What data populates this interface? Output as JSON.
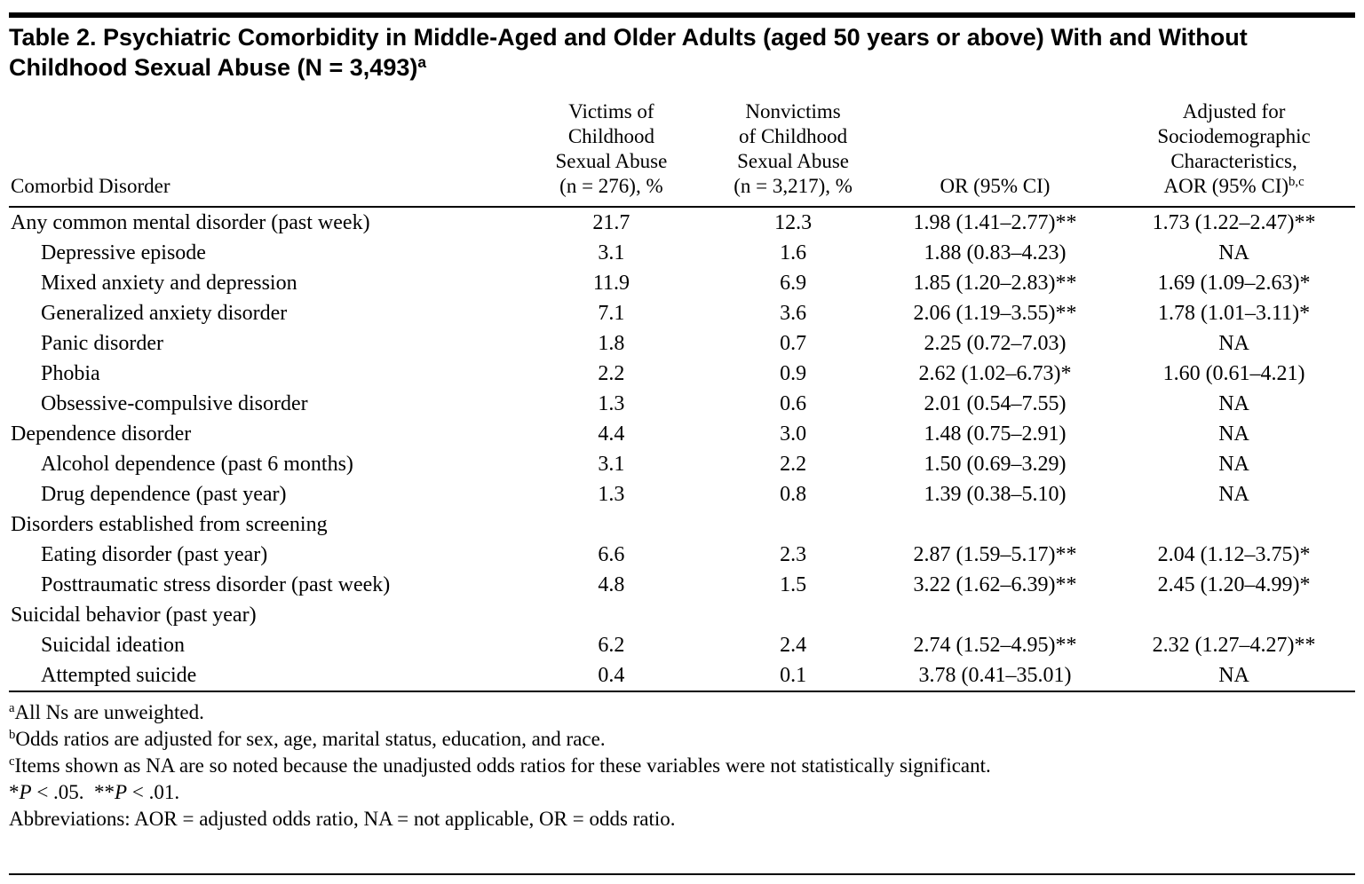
{
  "title": {
    "text": "Table 2. Psychiatric Comorbidity in Middle-Aged and Older Adults (aged 50 years or above) With and Without Childhood Sexual Abuse (N = 3,493)",
    "superscript": "a"
  },
  "table": {
    "header": {
      "col_disorder": "Comorbid Disorder",
      "col_victims": "Victims of\nChildhood\nSexual Abuse\n(n = 276), %",
      "col_nonvictims": "Nonvictims\nof Childhood\nSexual Abuse\n(n = 3,217), %",
      "col_or": "OR (95% CI)",
      "col_aor": "Adjusted for\nSociodemographic\nCharacteristics,\nAOR (95% CI)",
      "col_aor_superscript": "b,c"
    },
    "rows": [
      {
        "label": "Any common mental disorder (past week)",
        "indent": false,
        "victims": "21.7",
        "nonvictims": "12.3",
        "or": "1.98 (1.41–2.77)**",
        "aor": "1.73 (1.22–2.47)**"
      },
      {
        "label": "Depressive episode",
        "indent": true,
        "victims": "3.1",
        "nonvictims": "1.6",
        "or": "1.88 (0.83–4.23)",
        "aor": "NA"
      },
      {
        "label": "Mixed anxiety and depression",
        "indent": true,
        "victims": "11.9",
        "nonvictims": "6.9",
        "or": "1.85 (1.20–2.83)**",
        "aor": "1.69 (1.09–2.63)*"
      },
      {
        "label": "Generalized anxiety disorder",
        "indent": true,
        "victims": "7.1",
        "nonvictims": "3.6",
        "or": "2.06 (1.19–3.55)**",
        "aor": "1.78 (1.01–3.11)*"
      },
      {
        "label": "Panic disorder",
        "indent": true,
        "victims": "1.8",
        "nonvictims": "0.7",
        "or": "2.25 (0.72–7.03)",
        "aor": "NA"
      },
      {
        "label": "Phobia",
        "indent": true,
        "victims": "2.2",
        "nonvictims": "0.9",
        "or": "2.62 (1.02–6.73)*",
        "aor": "1.60 (0.61–4.21)"
      },
      {
        "label": "Obsessive-compulsive disorder",
        "indent": true,
        "victims": "1.3",
        "nonvictims": "0.6",
        "or": "2.01 (0.54–7.55)",
        "aor": "NA"
      },
      {
        "label": "Dependence disorder",
        "indent": false,
        "victims": "4.4",
        "nonvictims": "3.0",
        "or": "1.48 (0.75–2.91)",
        "aor": "NA"
      },
      {
        "label": "Alcohol dependence (past 6 months)",
        "indent": true,
        "victims": "3.1",
        "nonvictims": "2.2",
        "or": "1.50 (0.69–3.29)",
        "aor": "NA"
      },
      {
        "label": "Drug dependence (past year)",
        "indent": true,
        "victims": "1.3",
        "nonvictims": "0.8",
        "or": "1.39 (0.38–5.10)",
        "aor": "NA"
      },
      {
        "label": "Disorders established from screening",
        "indent": false,
        "victims": "",
        "nonvictims": "",
        "or": "",
        "aor": ""
      },
      {
        "label": "Eating disorder (past year)",
        "indent": true,
        "victims": "6.6",
        "nonvictims": "2.3",
        "or": "2.87 (1.59–5.17)**",
        "aor": "2.04 (1.12–3.75)*"
      },
      {
        "label": "Posttraumatic stress disorder (past week)",
        "indent": true,
        "victims": "4.8",
        "nonvictims": "1.5",
        "or": "3.22 (1.62–6.39)**",
        "aor": "2.45 (1.20–4.99)*"
      },
      {
        "label": "Suicidal behavior (past year)",
        "indent": false,
        "victims": "",
        "nonvictims": "",
        "or": "",
        "aor": ""
      },
      {
        "label": "Suicidal ideation",
        "indent": true,
        "victims": "6.2",
        "nonvictims": "2.4",
        "or": "2.74 (1.52–4.95)**",
        "aor": "2.32 (1.27–4.27)**"
      },
      {
        "label": "Attempted suicide",
        "indent": true,
        "victims": "0.4",
        "nonvictims": "0.1",
        "or": "3.78 (0.41–35.01)",
        "aor": "NA"
      }
    ]
  },
  "footnotes": [
    {
      "sup": "a",
      "parts": [
        {
          "text": "All Ns are unweighted."
        }
      ]
    },
    {
      "sup": "b",
      "parts": [
        {
          "text": "Odds ratios are adjusted for sex, age, marital status, education, and race."
        }
      ]
    },
    {
      "sup": "c",
      "parts": [
        {
          "text": "Items shown as NA are so noted because the unadjusted odds ratios for these variables were not statistically significant."
        }
      ]
    },
    {
      "sup": "",
      "parts": [
        {
          "text": "*"
        },
        {
          "text": "P",
          "italic": true
        },
        {
          "text": " < .05."
        },
        {
          "text": "  "
        },
        {
          "text": "**"
        },
        {
          "text": "P",
          "italic": true
        },
        {
          "text": " < .01."
        }
      ]
    },
    {
      "sup": "",
      "parts": [
        {
          "text": "Abbreviations: AOR = adjusted odds ratio, NA = not applicable, OR = odds ratio."
        }
      ]
    }
  ],
  "colors": {
    "text": "#000000",
    "background": "#ffffff",
    "rule": "#000000"
  }
}
